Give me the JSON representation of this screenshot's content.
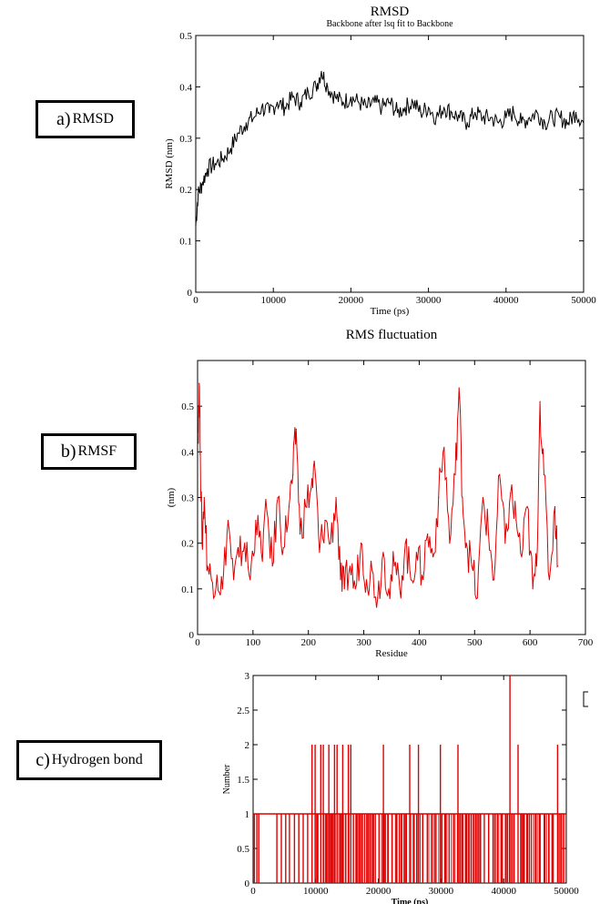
{
  "labels": {
    "a": {
      "tag": "a)",
      "text": "RMSD"
    },
    "b": {
      "tag": "b)",
      "text": "RMSF"
    },
    "c": {
      "tag": "c)",
      "text": "Hydrogen bond"
    }
  },
  "chart_data": [
    {
      "id": "rmsd",
      "type": "line",
      "title": "RMSD",
      "subtitle": "Backbone after lsq fit to Backbone",
      "xlabel": "Time (ps)",
      "ylabel": "RMSD (nm)",
      "xlim": [
        0,
        50000
      ],
      "ylim": [
        0,
        0.5
      ],
      "xticks": [
        0,
        10000,
        20000,
        30000,
        40000,
        50000
      ],
      "yticks": [
        0,
        0.1,
        0.2,
        0.3,
        0.4,
        0.5
      ],
      "color": "#000000",
      "grid": false,
      "series": [
        {
          "x": [
            0,
            300,
            800,
            1500,
            2500,
            3500,
            4500,
            5500,
            6500,
            7500,
            8500,
            9500,
            10500,
            11500,
            12500,
            13500,
            14500,
            15500,
            16200,
            17000,
            18000,
            19000,
            20000,
            21000,
            22000,
            23000,
            24000,
            25000,
            26000,
            27000,
            28000,
            29000,
            30000,
            31000,
            32000,
            33000,
            34000,
            35000,
            36000,
            37000,
            38000,
            39000,
            40000,
            41000,
            42000,
            43000,
            44000,
            45000,
            46000,
            47000,
            48000,
            49000,
            50000
          ],
          "y": [
            0.13,
            0.19,
            0.21,
            0.24,
            0.25,
            0.26,
            0.28,
            0.31,
            0.33,
            0.34,
            0.36,
            0.35,
            0.37,
            0.36,
            0.38,
            0.37,
            0.39,
            0.4,
            0.43,
            0.4,
            0.38,
            0.37,
            0.38,
            0.37,
            0.36,
            0.37,
            0.36,
            0.37,
            0.35,
            0.36,
            0.37,
            0.35,
            0.36,
            0.34,
            0.36,
            0.35,
            0.34,
            0.33,
            0.35,
            0.34,
            0.34,
            0.33,
            0.34,
            0.35,
            0.33,
            0.34,
            0.35,
            0.33,
            0.34,
            0.34,
            0.33,
            0.35,
            0.33
          ]
        }
      ]
    },
    {
      "id": "rmsf",
      "type": "line",
      "title": "RMS fluctuation",
      "xlabel": "Residue",
      "ylabel": "(nm)",
      "xlim": [
        0,
        700
      ],
      "ylim": [
        0,
        0.6
      ],
      "xticks": [
        0,
        100,
        200,
        300,
        400,
        500,
        600,
        700
      ],
      "yticks": [
        0,
        0.1,
        0.2,
        0.3,
        0.4,
        0.5
      ],
      "color": "#e00000",
      "grid": false,
      "series": [
        {
          "x": [
            1,
            3,
            5,
            8,
            12,
            18,
            25,
            35,
            45,
            55,
            65,
            75,
            85,
            95,
            105,
            115,
            125,
            135,
            145,
            155,
            165,
            172,
            178,
            185,
            195,
            205,
            212,
            220,
            230,
            240,
            250,
            258,
            265,
            275,
            285,
            295,
            305,
            315,
            325,
            335,
            345,
            355,
            365,
            375,
            385,
            395,
            405,
            415,
            425,
            435,
            445,
            455,
            465,
            472,
            478,
            485,
            495,
            505,
            515,
            525,
            535,
            545,
            555,
            565,
            575,
            585,
            595,
            605,
            612,
            618,
            625,
            635,
            645,
            650
          ],
          "y": [
            0.44,
            0.55,
            0.4,
            0.2,
            0.3,
            0.15,
            0.12,
            0.13,
            0.1,
            0.25,
            0.12,
            0.17,
            0.2,
            0.12,
            0.25,
            0.18,
            0.27,
            0.15,
            0.3,
            0.19,
            0.28,
            0.35,
            0.45,
            0.22,
            0.28,
            0.32,
            0.36,
            0.18,
            0.25,
            0.2,
            0.3,
            0.12,
            0.1,
            0.15,
            0.1,
            0.2,
            0.12,
            0.14,
            0.08,
            0.18,
            0.1,
            0.15,
            0.1,
            0.2,
            0.12,
            0.18,
            0.13,
            0.22,
            0.17,
            0.3,
            0.41,
            0.2,
            0.35,
            0.54,
            0.3,
            0.2,
            0.15,
            0.08,
            0.3,
            0.22,
            0.12,
            0.35,
            0.2,
            0.31,
            0.25,
            0.17,
            0.28,
            0.1,
            0.15,
            0.51,
            0.35,
            0.12,
            0.28,
            0.15
          ]
        }
      ]
    },
    {
      "id": "hbond",
      "type": "bar",
      "xlabel": "Time (ps)",
      "ylabel": "Number",
      "xlim": [
        0,
        50000
      ],
      "ylim": [
        0,
        3
      ],
      "xticks": [
        0,
        10000,
        20000,
        30000,
        40000,
        50000
      ],
      "yticks": [
        0,
        0.5,
        1,
        1.5,
        2,
        2.5,
        3
      ],
      "color": "#e00000",
      "grid": false,
      "series": [
        {
          "x": [
            200,
            600,
            900,
            3800,
            4500,
            5200,
            5800,
            6600,
            7300,
            8000,
            8700,
            9400,
            9900,
            10300,
            10800,
            11200,
            11700,
            12100,
            12600,
            13000,
            13400,
            13900,
            14300,
            14800,
            15200,
            15600,
            16000,
            16500,
            16900,
            17300,
            17800,
            18300,
            18900,
            19500,
            20100,
            20800,
            21500,
            22200,
            22900,
            23600,
            24300,
            25000,
            25700,
            26400,
            27100,
            27800,
            28500,
            29200,
            29900,
            30600,
            31300,
            32000,
            32700,
            33400,
            34100,
            34800,
            35500,
            36200,
            36900,
            37600,
            38300,
            39000,
            39700,
            40400,
            41000,
            41600,
            42300,
            43000,
            43700,
            44400,
            45100,
            45800,
            46500,
            47200,
            47900,
            48600,
            49200
          ],
          "values": [
            1,
            1,
            1,
            1,
            1,
            1,
            1,
            1,
            1,
            1,
            1,
            2,
            2,
            1,
            2,
            2,
            1,
            2,
            1,
            2,
            2,
            1,
            2,
            1,
            2,
            2,
            1,
            1,
            1,
            1,
            1,
            1,
            1,
            1,
            1,
            2,
            1,
            1,
            1,
            1,
            1,
            2,
            1,
            2,
            1,
            1,
            1,
            1,
            2,
            1,
            1,
            1,
            2,
            1,
            1,
            1,
            1,
            1,
            1,
            1,
            1,
            1,
            1,
            1,
            3,
            1,
            2,
            1,
            1,
            1,
            1,
            1,
            1,
            1,
            1,
            2,
            1
          ]
        }
      ]
    }
  ]
}
